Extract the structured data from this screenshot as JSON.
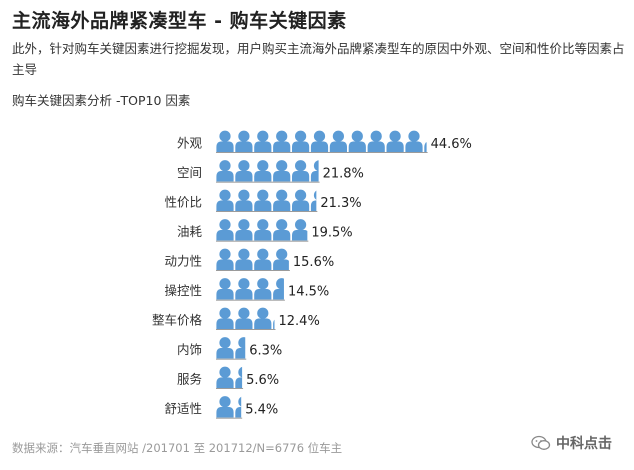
{
  "header": {
    "title": "主流海外品牌紧凑型车 - 购车关键因素",
    "description": "此外，针对购车关键因素进行挖掘发现，用户购买主流海外品牌紧凑型车的原因中外观、空间和性价比等因素占主导",
    "subtitle": "购车关键因素分析 -TOP10 因素"
  },
  "footer": {
    "source": "数据来源：汽车垂直网站 /201701 至 201712/N=6776 位车主",
    "brand": "中科点击"
  },
  "colors": {
    "icon": "#5b9bd5",
    "text": "#333333"
  },
  "chart_data": {
    "type": "bar",
    "categories": [
      "外观",
      "空间",
      "性价比",
      "油耗",
      "动力性",
      "操控性",
      "整车价格",
      "内饰",
      "服务",
      "舒适性"
    ],
    "values": [
      44.6,
      21.8,
      21.3,
      19.5,
      15.6,
      14.5,
      12.4,
      6.3,
      5.6,
      5.4
    ],
    "labels": [
      "44.6%",
      "21.8%",
      "21.3%",
      "19.5%",
      "15.6%",
      "14.5%",
      "12.4%",
      "6.3%",
      "5.6%",
      "5.4%"
    ],
    "title": "购车关键因素分析 -TOP10 因素",
    "xlabel": "",
    "ylabel": "",
    "unit": "%",
    "xlim": [
      0,
      50
    ],
    "grid": false,
    "legend": "none",
    "mark": "person-icon-pictograph"
  }
}
